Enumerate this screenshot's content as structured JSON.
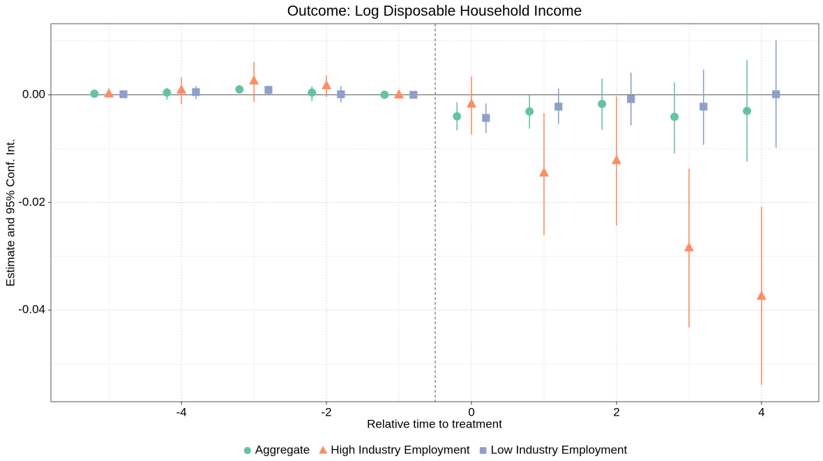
{
  "chart_data": {
    "type": "errorbar",
    "title": "Outcome: Log Disposable Household Income",
    "xlabel": "Relative time to treatment",
    "ylabel": "Estimate and 95% Conf. Int.",
    "x": [
      -5,
      -4,
      -3,
      -2,
      -1,
      0,
      1,
      2,
      3,
      4
    ],
    "series": [
      {
        "name": "Aggregate",
        "color": "#66c2a5",
        "shape": "circle",
        "values": [
          0.0002,
          0.0004,
          0.001,
          0.0004,
          0,
          -0.004,
          -0.0031,
          -0.0017,
          -0.0041,
          -0.003
        ],
        "lower": [
          0,
          -0.0009,
          0.0004,
          -0.0012,
          0,
          -0.0066,
          -0.0063,
          -0.0065,
          -0.0109,
          -0.0124
        ],
        "upper": [
          0.0004,
          0.0013,
          0.0018,
          0.0016,
          0,
          -0.0014,
          -0.0001,
          0.003,
          0.0023,
          0.0065
        ]
      },
      {
        "name": "High Industry Employment",
        "color": "#fc8d62",
        "shape": "triangle",
        "values": [
          0.0002,
          0.0009,
          0.0026,
          0.0017,
          0,
          -0.0017,
          -0.0145,
          -0.0122,
          -0.0284,
          -0.0374
        ],
        "lower": [
          0,
          -0.0017,
          -0.0013,
          -0.0004,
          0,
          -0.0074,
          -0.0261,
          -0.0243,
          -0.0432,
          -0.0539
        ],
        "upper": [
          0.0004,
          0.0032,
          0.0061,
          0.0036,
          0,
          0.0034,
          -0.0034,
          -0.0003,
          -0.0137,
          -0.0208
        ]
      },
      {
        "name": "Low Industry Employment",
        "color": "#8da0cb",
        "shape": "square",
        "values": [
          0.0001,
          0.0005,
          0.0009,
          0.0001,
          0,
          -0.0043,
          -0.0022,
          -0.0008,
          -0.0022,
          0.0001
        ],
        "lower": [
          0,
          -0.0008,
          0.0001,
          -0.0014,
          0,
          -0.0071,
          -0.0054,
          -0.0057,
          -0.0093,
          -0.0098
        ],
        "upper": [
          0.0002,
          0.0016,
          0.0017,
          0.0016,
          0,
          -0.0016,
          0.0012,
          0.0041,
          0.0047,
          0.0101
        ]
      }
    ],
    "xlim": [
      -5.8,
      4.79
    ],
    "ylim": [
      -0.057,
      0.0132
    ],
    "xticks": [
      -4,
      -2,
      0,
      2,
      4
    ],
    "x_minor_ticks": [
      -5,
      -3,
      -1,
      1,
      3
    ],
    "yticks": [
      {
        "value": 0,
        "label": "0.00"
      },
      {
        "value": -0.02,
        "label": "-0.02"
      },
      {
        "value": -0.04,
        "label": "-0.04"
      }
    ],
    "y_minor_ticks": [
      0.01,
      -0.01,
      -0.03,
      -0.05
    ],
    "hline": 0,
    "vline": -0.5,
    "grid": true,
    "legend": "bottom"
  }
}
